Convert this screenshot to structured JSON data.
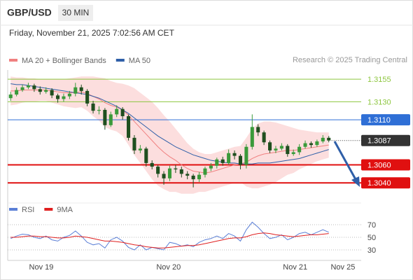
{
  "chart_data": {
    "type": "candlestick",
    "symbol": "GBP/USD",
    "timeframe": "30 MIN",
    "timestamp": "Friday, November 21, 2025 7:02:56 AM CET",
    "credit": "Research © 2025 Trading Central",
    "up_color": "#3a9a3a",
    "down_color": "#1f4f1f",
    "open": [
      1.3134,
      1.3138,
      1.3143,
      1.3146,
      1.3148,
      1.3144,
      1.3141,
      1.3143,
      1.3137,
      1.3133,
      1.3136,
      1.3139,
      1.3146,
      1.3142,
      1.3128,
      1.312,
      1.3121,
      1.3104,
      1.3116,
      1.3122,
      1.3114,
      1.309,
      1.3076,
      1.3078,
      1.3062,
      1.3058,
      1.305,
      1.3045,
      1.3056,
      1.3055,
      1.305,
      1.3048,
      1.3044,
      1.3049,
      1.3056,
      1.3059,
      1.3066,
      1.3062,
      1.3073,
      1.307,
      1.306,
      1.308,
      1.3102,
      1.3096,
      1.3085,
      1.3076,
      1.3078,
      1.3081,
      1.3072,
      1.3074,
      1.308,
      1.3084,
      1.3082,
      1.3086,
      1.309
    ],
    "high": [
      1.3141,
      1.3146,
      1.3149,
      1.3151,
      1.315,
      1.3147,
      1.3146,
      1.3145,
      1.3139,
      1.3139,
      1.3142,
      1.3151,
      1.3149,
      1.3144,
      1.3131,
      1.3125,
      1.3123,
      1.3119,
      1.3126,
      1.3124,
      1.3116,
      1.3093,
      1.3082,
      1.308,
      1.3065,
      1.306,
      1.3053,
      1.3059,
      1.306,
      1.3058,
      1.3053,
      1.305,
      1.3052,
      1.3058,
      1.3062,
      1.3068,
      1.3069,
      1.3077,
      1.3076,
      1.3072,
      1.3083,
      1.3116,
      1.3105,
      1.3098,
      1.3087,
      1.3081,
      1.3084,
      1.3083,
      1.3077,
      1.3083,
      1.3087,
      1.3086,
      1.3088,
      1.3093,
      1.3092
    ],
    "low": [
      1.3131,
      1.3136,
      1.3141,
      1.3144,
      1.3141,
      1.3138,
      1.3139,
      1.3134,
      1.3129,
      1.313,
      1.3133,
      1.3136,
      1.3138,
      1.3125,
      1.3117,
      1.3116,
      1.3099,
      1.3102,
      1.3113,
      1.311,
      1.3087,
      1.3072,
      1.3073,
      1.3058,
      1.3055,
      1.3046,
      1.3038,
      1.3042,
      1.3051,
      1.3046,
      1.3044,
      1.3035,
      1.3041,
      1.3046,
      1.3053,
      1.3056,
      1.3059,
      1.306,
      1.3066,
      1.3055,
      1.3056,
      1.3077,
      1.3092,
      1.3082,
      1.3073,
      1.3073,
      1.3076,
      1.3069,
      1.307,
      1.3071,
      1.3078,
      1.3079,
      1.308,
      1.3084,
      1.3085
    ],
    "close": [
      1.3138,
      1.3143,
      1.3146,
      1.3148,
      1.3144,
      1.3141,
      1.3143,
      1.3137,
      1.3133,
      1.3136,
      1.3139,
      1.3146,
      1.3142,
      1.3128,
      1.312,
      1.3121,
      1.3104,
      1.3116,
      1.3122,
      1.3114,
      1.309,
      1.3076,
      1.3078,
      1.3062,
      1.3058,
      1.305,
      1.3045,
      1.3056,
      1.3055,
      1.305,
      1.3048,
      1.3044,
      1.3049,
      1.3056,
      1.3059,
      1.3066,
      1.3062,
      1.3073,
      1.307,
      1.306,
      1.308,
      1.3102,
      1.3096,
      1.3085,
      1.3076,
      1.3078,
      1.3081,
      1.3072,
      1.3074,
      1.308,
      1.3084,
      1.3082,
      1.3086,
      1.309,
      1.3087
    ],
    "series": [
      {
        "name": "MA 20 + Bollinger Bands",
        "color": "#f08080",
        "band_color": "#fbd3d3",
        "values": [
          1.3142,
          1.3142,
          1.3143,
          1.3143,
          1.3143,
          1.3143,
          1.3143,
          1.3142,
          1.3141,
          1.314,
          1.314,
          1.314,
          1.3141,
          1.3139,
          1.3136,
          1.3133,
          1.3129,
          1.3126,
          1.3124,
          1.3121,
          1.3115,
          1.3108,
          1.3101,
          1.3094,
          1.3087,
          1.308,
          1.3074,
          1.3069,
          1.3065,
          1.306,
          1.3056,
          1.3053,
          1.3052,
          1.3051,
          1.3052,
          1.3054,
          1.3056,
          1.3058,
          1.306,
          1.3061,
          1.3063,
          1.3067,
          1.307,
          1.3072,
          1.3073,
          1.3074,
          1.3075,
          1.3076,
          1.3076,
          1.3077,
          1.3078,
          1.3079,
          1.308,
          1.3081,
          1.3082
        ],
        "upper": [
          1.3158,
          1.3157,
          1.3157,
          1.3156,
          1.3156,
          1.3155,
          1.3155,
          1.3155,
          1.3155,
          1.3155,
          1.3156,
          1.3157,
          1.3158,
          1.3158,
          1.3158,
          1.3157,
          1.3156,
          1.3153,
          1.3151,
          1.315,
          1.3148,
          1.3145,
          1.314,
          1.3135,
          1.313,
          1.3123,
          1.3115,
          1.3108,
          1.31,
          1.3092,
          1.3084,
          1.3078,
          1.3074,
          1.3072,
          1.3072,
          1.3074,
          1.3076,
          1.3078,
          1.308,
          1.3081,
          1.309,
          1.31,
          1.3106,
          1.3108,
          1.3108,
          1.3107,
          1.3105,
          1.3103,
          1.3101,
          1.3099,
          1.3098,
          1.3097,
          1.3096,
          1.3096,
          1.3096
        ],
        "lower": [
          1.3126,
          1.3127,
          1.3129,
          1.313,
          1.313,
          1.3131,
          1.3131,
          1.3129,
          1.3127,
          1.3125,
          1.3124,
          1.3123,
          1.3124,
          1.312,
          1.3114,
          1.3109,
          1.3102,
          1.3099,
          1.3097,
          1.3092,
          1.3082,
          1.3071,
          1.3062,
          1.3053,
          1.3044,
          1.3037,
          1.3033,
          1.303,
          1.303,
          1.3028,
          1.3028,
          1.3028,
          1.303,
          1.303,
          1.3032,
          1.3034,
          1.3036,
          1.3038,
          1.304,
          1.3041,
          1.3036,
          1.3034,
          1.3034,
          1.3036,
          1.3038,
          1.3041,
          1.3045,
          1.3049,
          1.3051,
          1.3055,
          1.3058,
          1.3061,
          1.3064,
          1.3066,
          1.3068
        ]
      },
      {
        "name": "MA 50",
        "color": "#2f5fa8",
        "values": [
          1.315,
          1.3149,
          1.3149,
          1.3148,
          1.3147,
          1.3146,
          1.3145,
          1.3144,
          1.3143,
          1.3142,
          1.3141,
          1.314,
          1.3139,
          1.3138,
          1.3136,
          1.3134,
          1.3131,
          1.3128,
          1.3125,
          1.3121,
          1.3117,
          1.3112,
          1.3107,
          1.3102,
          1.3097,
          1.3092,
          1.3088,
          1.3084,
          1.308,
          1.3077,
          1.3074,
          1.3071,
          1.3069,
          1.3067,
          1.3065,
          1.3064,
          1.3063,
          1.3062,
          1.3062,
          1.3061,
          1.3061,
          1.3061,
          1.3062,
          1.3062,
          1.3062,
          1.3063,
          1.3064,
          1.3065,
          1.3066,
          1.3067,
          1.3069,
          1.3071,
          1.3073,
          1.3075,
          1.3077
        ]
      }
    ],
    "xlim": [
      -0.5,
      59.5
    ],
    "ylim": [
      1.302,
      1.3166
    ],
    "xticks": [
      {
        "value": 5.2,
        "label": "Nov 19"
      },
      {
        "value": 26.8,
        "label": "Nov 20"
      },
      {
        "value": 48.3,
        "label": "Nov 21"
      },
      {
        "value": 56.4,
        "label": "Nov 25"
      }
    ],
    "levels": [
      {
        "value": 1.3155,
        "color": "#8dc63f",
        "width": 1,
        "box": false
      },
      {
        "value": 1.313,
        "label": "1.3130",
        "color": "#8dc63f",
        "width": 1,
        "box": false
      },
      {
        "value": 1.311,
        "label": "1.3110",
        "color": "#2f6fd6",
        "width": 1,
        "box": true
      },
      {
        "value": 1.306,
        "label": "1.3060",
        "color": "#e01010",
        "width": 2,
        "box": true
      },
      {
        "value": 1.304,
        "label": "1.3040",
        "color": "#e01010",
        "width": 2,
        "box": true
      }
    ],
    "last_color": "#333333",
    "rsi": {
      "ylim": [
        20,
        80
      ],
      "yticks": [
        30,
        50,
        70
      ],
      "series": [
        {
          "name": "RSI",
          "color": "#5b7fd6",
          "values": [
            48,
            52,
            55,
            54,
            50,
            48,
            52,
            46,
            44,
            50,
            53,
            60,
            52,
            42,
            38,
            40,
            33,
            46,
            50,
            44,
            34,
            30,
            38,
            30,
            34,
            32,
            30,
            42,
            40,
            36,
            38,
            35,
            42,
            46,
            48,
            52,
            48,
            56,
            52,
            44,
            62,
            74,
            66,
            56,
            48,
            50,
            54,
            46,
            50,
            56,
            58,
            54,
            58,
            62,
            58
          ]
        },
        {
          "name": "9MA",
          "color": "#e02020",
          "values": [
            50,
            50,
            51,
            52,
            52,
            51,
            51,
            50,
            49,
            49,
            50,
            52,
            51,
            50,
            48,
            46,
            44,
            44,
            43,
            42,
            40,
            38,
            37,
            35,
            34,
            33,
            33,
            34,
            35,
            36,
            37,
            37,
            38,
            40,
            42,
            44,
            46,
            48,
            49,
            49,
            51,
            54,
            56,
            57,
            56,
            54,
            53,
            52,
            51,
            52,
            53,
            54,
            54,
            55,
            56
          ]
        }
      ]
    }
  }
}
